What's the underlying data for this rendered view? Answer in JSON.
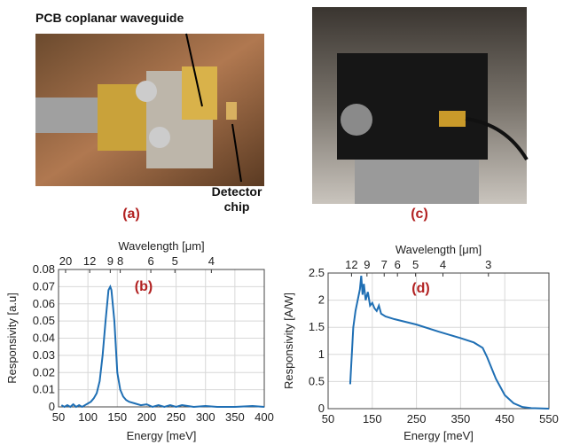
{
  "photos": [
    {
      "label": "(a)",
      "annotations": [
        "PCB coplanar waveguide",
        "Detector chip"
      ]
    },
    {
      "label": "(c)"
    }
  ],
  "chart_data": [
    {
      "type": "line",
      "panel_label": "(b)",
      "x_label": "Energy [meV]",
      "x2_label": "Wavelength [μm]",
      "y_label": "Responsivity [a.u]",
      "xlim": [
        50,
        400
      ],
      "xticks": [
        50,
        100,
        150,
        200,
        250,
        300,
        350,
        400
      ],
      "ylim": [
        0,
        0.08
      ],
      "yticks": [
        0,
        0.01,
        0.02,
        0.03,
        0.04,
        0.05,
        0.06,
        0.07,
        0.08
      ],
      "x2ticks": [
        {
          "value": 62,
          "label": "20"
        },
        {
          "value": 103,
          "label": "12"
        },
        {
          "value": 138,
          "label": "9"
        },
        {
          "value": 155,
          "label": "8"
        },
        {
          "value": 207,
          "label": "6"
        },
        {
          "value": 248,
          "label": "5"
        },
        {
          "value": 310,
          "label": "4"
        }
      ],
      "grid": true,
      "color": "#1f6fb4",
      "x": [
        55,
        60,
        65,
        70,
        75,
        80,
        85,
        90,
        95,
        100,
        105,
        110,
        115,
        120,
        125,
        130,
        135,
        138,
        140,
        145,
        150,
        155,
        160,
        165,
        170,
        180,
        190,
        200,
        210,
        220,
        230,
        240,
        250,
        260,
        280,
        300,
        320,
        350,
        380,
        400
      ],
      "values": [
        0.001,
        0,
        0.001,
        0,
        0.0015,
        0,
        0.001,
        0,
        0.001,
        0.002,
        0.003,
        0.005,
        0.008,
        0.015,
        0.03,
        0.05,
        0.068,
        0.07,
        0.068,
        0.05,
        0.02,
        0.01,
        0.006,
        0.004,
        0.003,
        0.002,
        0.001,
        0.0015,
        0,
        0.001,
        0,
        0.001,
        0,
        0.001,
        0,
        0.0005,
        0,
        0,
        0.0005,
        0
      ]
    },
    {
      "type": "line",
      "panel_label": "(d)",
      "x_label": "Energy [meV]",
      "x2_label": "Wavelength [μm]",
      "y_label": "Responsivity [A/W]",
      "xlim": [
        50,
        550
      ],
      "xticks": [
        50,
        150,
        250,
        350,
        450,
        550
      ],
      "ylim": [
        0,
        2.5
      ],
      "yticks": [
        0,
        0.5,
        1,
        1.5,
        2,
        2.5
      ],
      "x2ticks": [
        {
          "value": 103,
          "label": "12"
        },
        {
          "value": 138,
          "label": "9"
        },
        {
          "value": 177,
          "label": "7"
        },
        {
          "value": 207,
          "label": "6"
        },
        {
          "value": 248,
          "label": "5"
        },
        {
          "value": 310,
          "label": "4"
        },
        {
          "value": 413,
          "label": "3"
        }
      ],
      "grid": true,
      "color": "#1f6fb4",
      "x": [
        100,
        103,
        107,
        112,
        117,
        122,
        125,
        128,
        131,
        135,
        140,
        145,
        150,
        155,
        160,
        165,
        170,
        180,
        200,
        250,
        300,
        350,
        380,
        400,
        410,
        420,
        430,
        440,
        450,
        470,
        490,
        510,
        550
      ],
      "values": [
        0.45,
        0.9,
        1.5,
        1.8,
        2.0,
        2.2,
        2.45,
        2.1,
        2.3,
        2.0,
        2.15,
        1.9,
        1.95,
        1.85,
        1.8,
        1.9,
        1.75,
        1.7,
        1.65,
        1.55,
        1.42,
        1.3,
        1.22,
        1.12,
        0.95,
        0.75,
        0.55,
        0.4,
        0.25,
        0.1,
        0.03,
        0.01,
        0
      ]
    }
  ]
}
